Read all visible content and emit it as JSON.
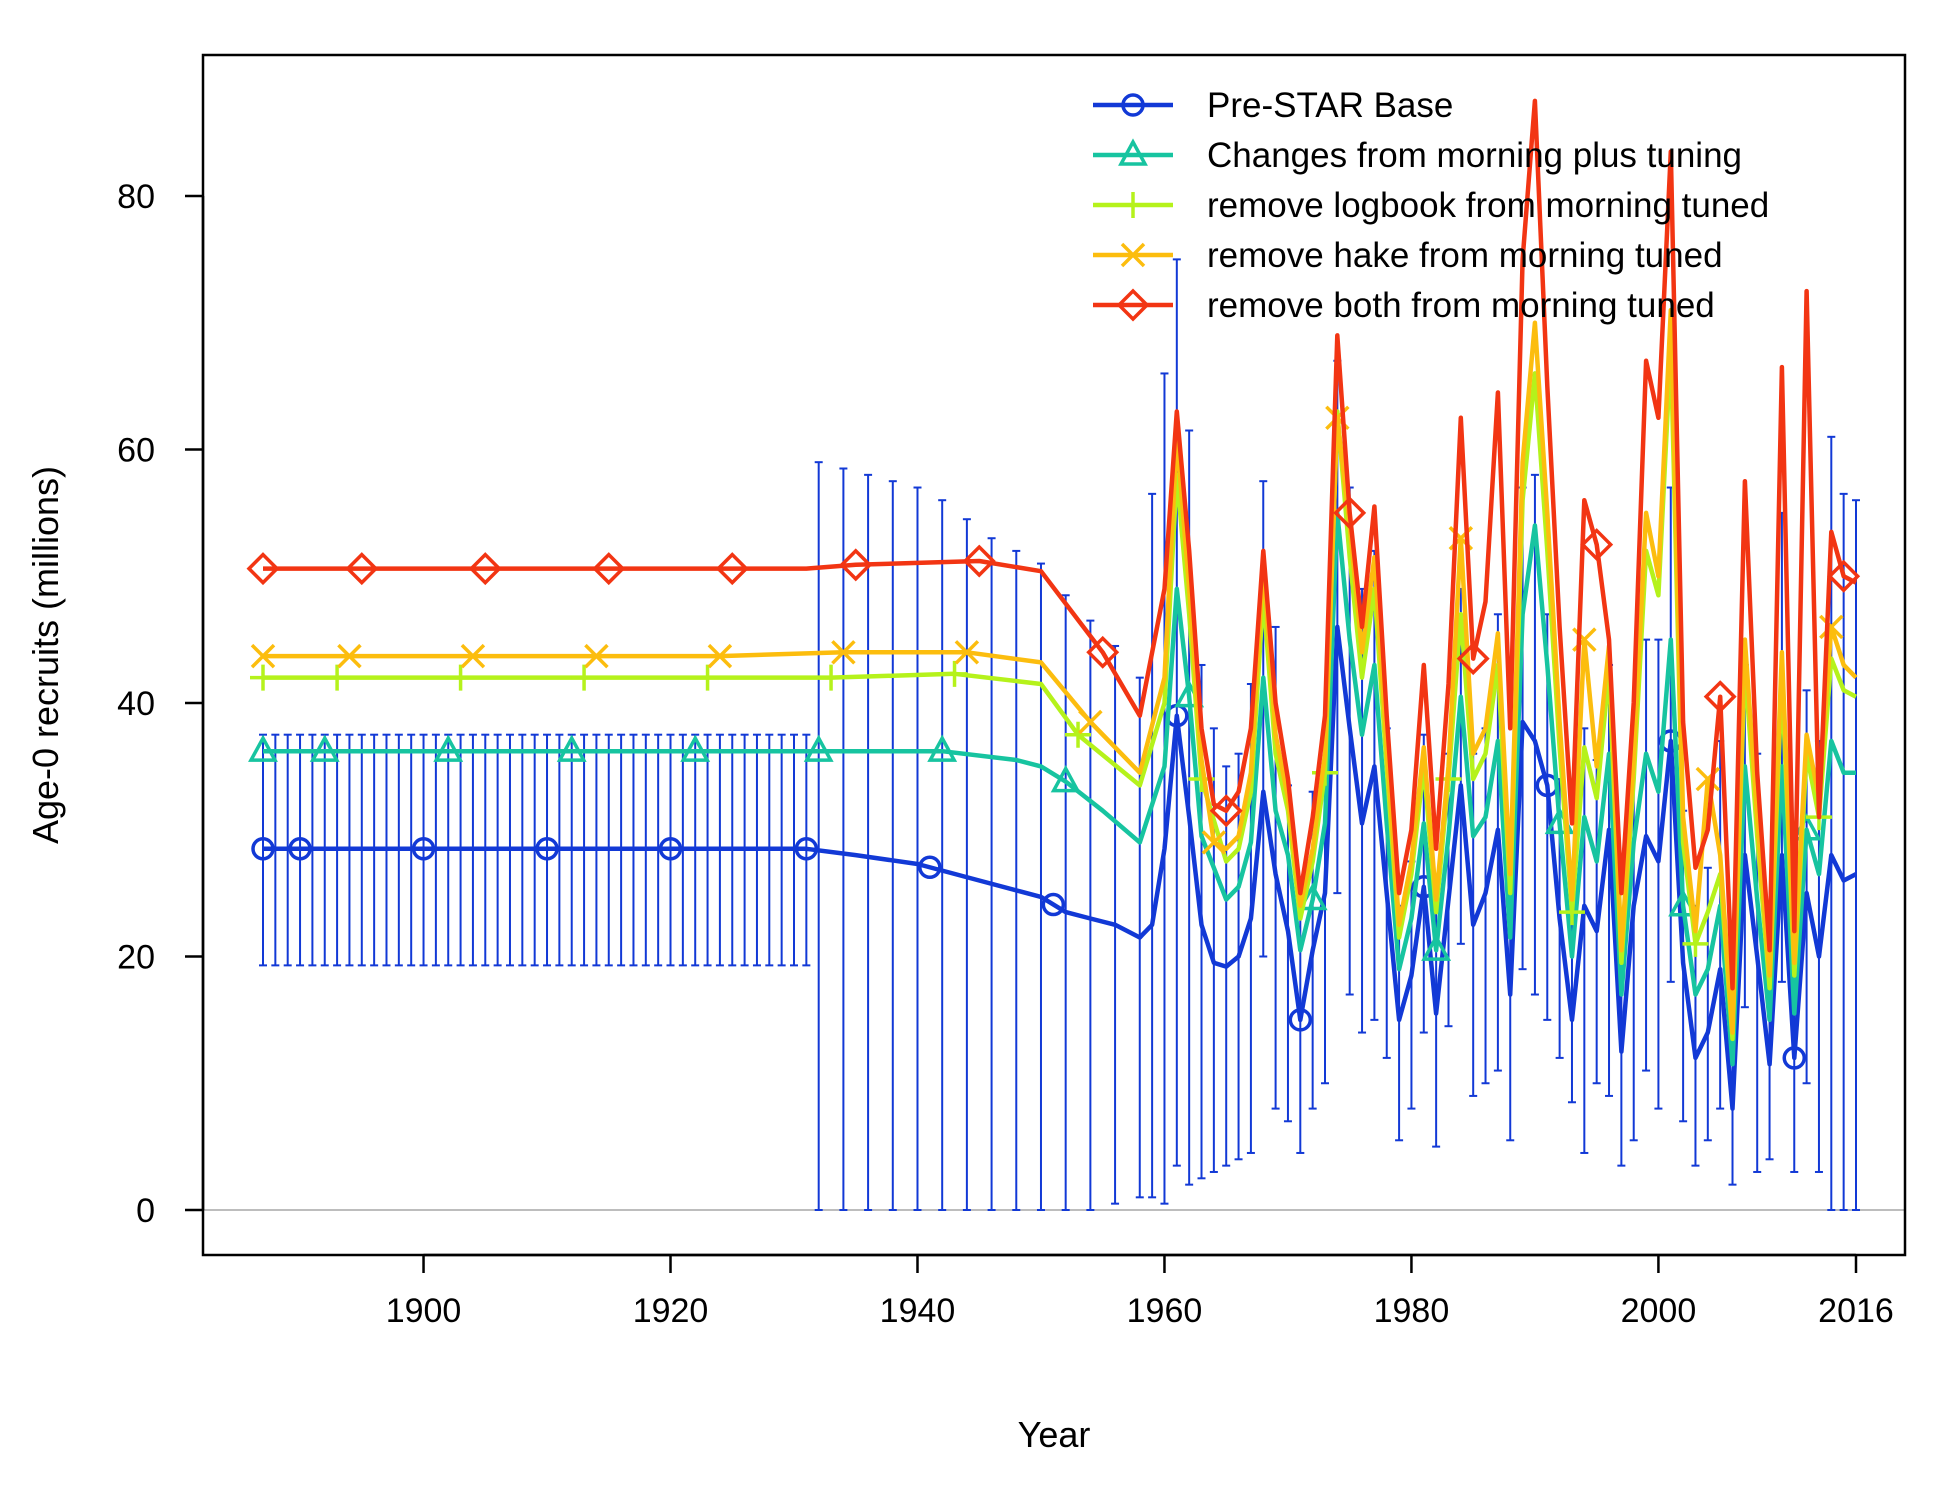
{
  "chart_data": {
    "type": "line",
    "xlabel": "Year",
    "ylabel": "Age-0 recruits (millions)",
    "xlim": [
      1887,
      2016
    ],
    "ylim": [
      0,
      85
    ],
    "x_ticks": [
      "1900",
      "1920",
      "1940",
      "1960",
      "1980",
      "2000",
      "2016"
    ],
    "y_ticks": [
      "0",
      "20",
      "40",
      "60",
      "80"
    ],
    "x_tick_values": [
      1900,
      1920,
      1940,
      1960,
      1980,
      2000,
      2016
    ],
    "y_tick_values": [
      0,
      20,
      40,
      60,
      80
    ],
    "legend_position": "top-right",
    "series": [
      {
        "name": "Pre-STAR Base",
        "color": "#1239d6",
        "marker": "circle",
        "x": [
          1887,
          1890,
          1900,
          1910,
          1920,
          1931,
          1935,
          1940,
          1945,
          1950,
          1952,
          1954,
          1956,
          1958,
          1959,
          1960,
          1961,
          1962,
          1963,
          1964,
          1965,
          1966,
          1967,
          1968,
          1969,
          1970,
          1971,
          1972,
          1973,
          1974,
          1975,
          1976,
          1977,
          1978,
          1979,
          1980,
          1981,
          1982,
          1983,
          1984,
          1985,
          1986,
          1987,
          1988,
          1989,
          1990,
          1991,
          1992,
          1993,
          1994,
          1995,
          1996,
          1997,
          1998,
          1999,
          2000,
          2001,
          2002,
          2003,
          2004,
          2005,
          2006,
          2007,
          2008,
          2009,
          2010,
          2011,
          2012,
          2013,
          2014,
          2015,
          2016
        ],
        "values": [
          28.5,
          28.5,
          28.5,
          28.5,
          28.5,
          28.5,
          28.0,
          27.3,
          26.0,
          24.7,
          23.5,
          23.0,
          22.5,
          21.5,
          22.5,
          28.5,
          39.0,
          31.0,
          22.5,
          19.5,
          19.2,
          20.0,
          23.0,
          33.0,
          26.5,
          22.0,
          15.0,
          20.5,
          25.0,
          46.0,
          38.0,
          30.5,
          35.0,
          25.0,
          15.0,
          18.5,
          25.5,
          15.5,
          24.5,
          33.5,
          22.5,
          25.0,
          30.0,
          17.0,
          38.5,
          37.0,
          33.5,
          23.0,
          15.0,
          24.0,
          22.0,
          30.0,
          12.5,
          24.0,
          29.5,
          27.5,
          37.0,
          19.5,
          12.0,
          14.0,
          19.0,
          8.0,
          28.0,
          20.0,
          11.5,
          28.0,
          12.0,
          25.0,
          20.0,
          28.0,
          26.0,
          26.5
        ],
        "error_bars": {
          "early_period": {
            "x_range": [
              1887,
              1931
            ],
            "low": 19.3,
            "high": 37.5
          },
          "later_period_years": [
            1932,
            1934,
            1936,
            1938,
            1940,
            1942,
            1944,
            1946,
            1948,
            1950,
            1952,
            1954,
            1956,
            1958,
            1959,
            1960,
            1961,
            1962,
            1963,
            1964,
            1965,
            1966,
            1967,
            1968,
            1969,
            1970,
            1971,
            1972,
            1973,
            1974,
            1975,
            1976,
            1977,
            1978,
            1979,
            1980,
            1981,
            1982,
            1983,
            1984,
            1985,
            1986,
            1987,
            1988,
            1989,
            1990,
            1991,
            1992,
            1993,
            1994,
            1995,
            1996,
            1997,
            1998,
            1999,
            2000,
            2001,
            2002,
            2003,
            2004,
            2005,
            2006,
            2007,
            2008,
            2009,
            2010,
            2011,
            2012,
            2013,
            2014,
            2015,
            2016
          ],
          "later_low": [
            0,
            0,
            0,
            0,
            0,
            0,
            0,
            0,
            0,
            0,
            0,
            0,
            0.5,
            1,
            1,
            0.5,
            3.5,
            2,
            2.5,
            3,
            3.5,
            4,
            4.5,
            20,
            8,
            7,
            4.5,
            8,
            10,
            25,
            17,
            14,
            15,
            12,
            5.5,
            8,
            14,
            5,
            14.5,
            21,
            9,
            10,
            11,
            5.5,
            19,
            17,
            15,
            12,
            8.5,
            4.5,
            10,
            9,
            3.5,
            5.5,
            11,
            8,
            18,
            7,
            3.5,
            5.5,
            8,
            2,
            16,
            3,
            4,
            18,
            3,
            10,
            3,
            0,
            0,
            0
          ],
          "later_high": [
            59,
            58.5,
            58,
            57.5,
            57,
            56,
            54.5,
            53,
            52,
            51,
            48.5,
            46.5,
            44.5,
            42,
            56.5,
            66,
            75,
            61.5,
            43,
            38,
            35,
            36,
            41.5,
            57.5,
            46,
            33.5,
            25.5,
            33,
            37.5,
            67,
            57,
            49,
            52,
            38,
            24,
            27.5,
            37.5,
            24,
            36,
            49,
            36,
            38,
            47,
            26,
            57,
            58,
            47,
            34,
            27,
            38,
            35.5,
            43,
            21,
            37,
            45,
            45,
            57,
            31.5,
            24,
            27,
            37,
            17,
            43,
            36,
            20,
            55,
            24,
            41,
            37,
            61,
            56.5,
            56
          ]
        }
      },
      {
        "name": "Changes from morning plus tuning",
        "color": "#17c4a0",
        "marker": "triangle",
        "x": [
          1887,
          1892,
          1902,
          1912,
          1922,
          1932,
          1942,
          1948,
          1950,
          1952,
          1955,
          1958,
          1960,
          1961,
          1962,
          1963,
          1965,
          1966,
          1967,
          1968,
          1969,
          1970,
          1971,
          1972,
          1973,
          1974,
          1975,
          1976,
          1977,
          1978,
          1979,
          1980,
          1981,
          1982,
          1983,
          1984,
          1985,
          1986,
          1987,
          1988,
          1989,
          1990,
          1991,
          1992,
          1993,
          1994,
          1995,
          1996,
          1997,
          1998,
          1999,
          2000,
          2001,
          2002,
          2003,
          2004,
          2005,
          2006,
          2007,
          2008,
          2009,
          2010,
          2011,
          2012,
          2013,
          2014,
          2015,
          2016
        ],
        "values": [
          36.2,
          36.2,
          36.2,
          36.2,
          36.2,
          36.2,
          36.2,
          35.5,
          35.0,
          33.8,
          31.5,
          29.0,
          35.0,
          49.0,
          40.5,
          29.5,
          24.5,
          25.5,
          29.0,
          42.0,
          31.5,
          28.0,
          20.5,
          24.5,
          30.5,
          55.0,
          45.0,
          37.5,
          43.0,
          30.5,
          19.0,
          23.0,
          30.5,
          20.5,
          29.5,
          40.5,
          29.5,
          31.0,
          37.0,
          21.5,
          47.0,
          54.0,
          43.0,
          30.5,
          20.0,
          31.0,
          27.5,
          36.0,
          17.0,
          29.0,
          36.0,
          33.0,
          45.0,
          24.0,
          17.0,
          19.0,
          24.0,
          11.5,
          35.0,
          24.5,
          15.0,
          35.0,
          15.5,
          30.0,
          26.5,
          37.0,
          34.5,
          34.5
        ]
      },
      {
        "name": "remove logbook from morning tuned",
        "color": "#b5f21b",
        "marker": "plus",
        "x": [
          1887,
          1893,
          1903,
          1913,
          1923,
          1933,
          1943,
          1950,
          1953,
          1958,
          1960,
          1961,
          1962,
          1963,
          1965,
          1966,
          1967,
          1968,
          1969,
          1970,
          1971,
          1972,
          1973,
          1974,
          1975,
          1976,
          1977,
          1978,
          1979,
          1980,
          1981,
          1982,
          1983,
          1984,
          1985,
          1986,
          1987,
          1988,
          1989,
          1990,
          1991,
          1992,
          1993,
          1994,
          1995,
          1996,
          1997,
          1998,
          1999,
          2000,
          2001,
          2002,
          2003,
          2004,
          2005,
          2006,
          2007,
          2008,
          2009,
          2010,
          2011,
          2012,
          2013,
          2014,
          2015,
          2016
        ],
        "values": [
          42.0,
          42.0,
          42.0,
          42.0,
          42.0,
          42.0,
          42.3,
          41.5,
          37.5,
          33.5,
          40.0,
          58.0,
          47.0,
          34.0,
          27.5,
          28.5,
          33.0,
          48.5,
          36.0,
          31.5,
          23.0,
          27.5,
          34.5,
          63.0,
          51.5,
          42.0,
          49.0,
          35.0,
          21.5,
          26.5,
          35.0,
          23.5,
          34.0,
          47.0,
          34.0,
          36.0,
          43.0,
          25.0,
          56.0,
          66.0,
          52.0,
          36.5,
          23.5,
          36.5,
          32.5,
          42.5,
          19.5,
          34.0,
          52.0,
          48.5,
          68.0,
          29.0,
          21.0,
          23.5,
          26.5,
          13.5,
          43.0,
          29.5,
          17.5,
          42.0,
          18.5,
          36.0,
          31.0,
          43.5,
          41.0,
          40.5
        ]
      },
      {
        "name": "remove hake from morning tuned",
        "color": "#fcbd0e",
        "marker": "x",
        "x": [
          1887,
          1894,
          1904,
          1914,
          1924,
          1934,
          1944,
          1950,
          1954,
          1958,
          1960,
          1961,
          1962,
          1963,
          1964,
          1965,
          1966,
          1967,
          1968,
          1969,
          1970,
          1971,
          1972,
          1973,
          1974,
          1975,
          1976,
          1977,
          1978,
          1979,
          1980,
          1981,
          1982,
          1983,
          1984,
          1985,
          1986,
          1987,
          1988,
          1989,
          1990,
          1991,
          1992,
          1993,
          1994,
          1995,
          1996,
          1997,
          1998,
          1999,
          2000,
          2001,
          2002,
          2003,
          2004,
          2005,
          2006,
          2007,
          2008,
          2009,
          2010,
          2011,
          2012,
          2013,
          2014,
          2015,
          2016
        ],
        "values": [
          43.7,
          43.7,
          43.7,
          43.7,
          43.7,
          44.0,
          44.0,
          43.2,
          38.5,
          34.5,
          42.0,
          61.0,
          49.0,
          35.5,
          29.0,
          28.5,
          29.5,
          34.5,
          51.0,
          37.5,
          32.5,
          24.0,
          28.5,
          36.0,
          62.5,
          54.0,
          44.0,
          51.5,
          36.5,
          22.5,
          27.5,
          36.5,
          24.5,
          35.0,
          53.0,
          36.0,
          38.0,
          45.5,
          26.5,
          59.0,
          70.0,
          55.0,
          38.5,
          24.5,
          45.0,
          35.0,
          44.5,
          20.5,
          35.5,
          55.0,
          50.0,
          71.0,
          31.0,
          22.0,
          34.0,
          28.0,
          14.0,
          45.0,
          31.0,
          18.5,
          44.0,
          19.5,
          37.5,
          32.5,
          46.0,
          43.0,
          42.0
        ]
      },
      {
        "name": "remove both from morning tuned",
        "color": "#f23513",
        "marker": "diamond",
        "x": [
          1887,
          1895,
          1905,
          1915,
          1925,
          1931,
          1935,
          1945,
          1950,
          1955,
          1958,
          1960,
          1961,
          1962,
          1963,
          1964,
          1965,
          1966,
          1967,
          1968,
          1969,
          1970,
          1971,
          1972,
          1973,
          1974,
          1975,
          1976,
          1977,
          1978,
          1979,
          1980,
          1981,
          1982,
          1983,
          1984,
          1985,
          1986,
          1987,
          1988,
          1989,
          1990,
          1991,
          1992,
          1993,
          1994,
          1995,
          1996,
          1997,
          1998,
          1999,
          2000,
          2001,
          2002,
          2003,
          2004,
          2005,
          2006,
          2007,
          2008,
          2009,
          2010,
          2011,
          2012,
          2013,
          2014,
          2015,
          2016
        ],
        "values": [
          50.6,
          50.6,
          50.6,
          50.6,
          50.6,
          50.6,
          50.9,
          51.2,
          50.4,
          44.0,
          39.0,
          49.0,
          63.0,
          52.0,
          38.0,
          32.0,
          31.5,
          33.0,
          38.0,
          52.0,
          40.0,
          34.0,
          25.0,
          31.0,
          39.0,
          69.0,
          55.0,
          46.0,
          55.5,
          39.0,
          25.0,
          30.0,
          43.0,
          28.5,
          41.5,
          62.5,
          43.5,
          48.0,
          64.5,
          38.0,
          75.0,
          87.5,
          65.0,
          46.0,
          30.5,
          56.0,
          52.5,
          45.0,
          25.0,
          40.0,
          67.0,
          62.5,
          83.5,
          38.5,
          27.0,
          30.0,
          40.5,
          17.5,
          57.5,
          34.5,
          20.5,
          66.5,
          22.0,
          72.5,
          31.0,
          53.5,
          50.0,
          49.5
        ]
      }
    ]
  }
}
